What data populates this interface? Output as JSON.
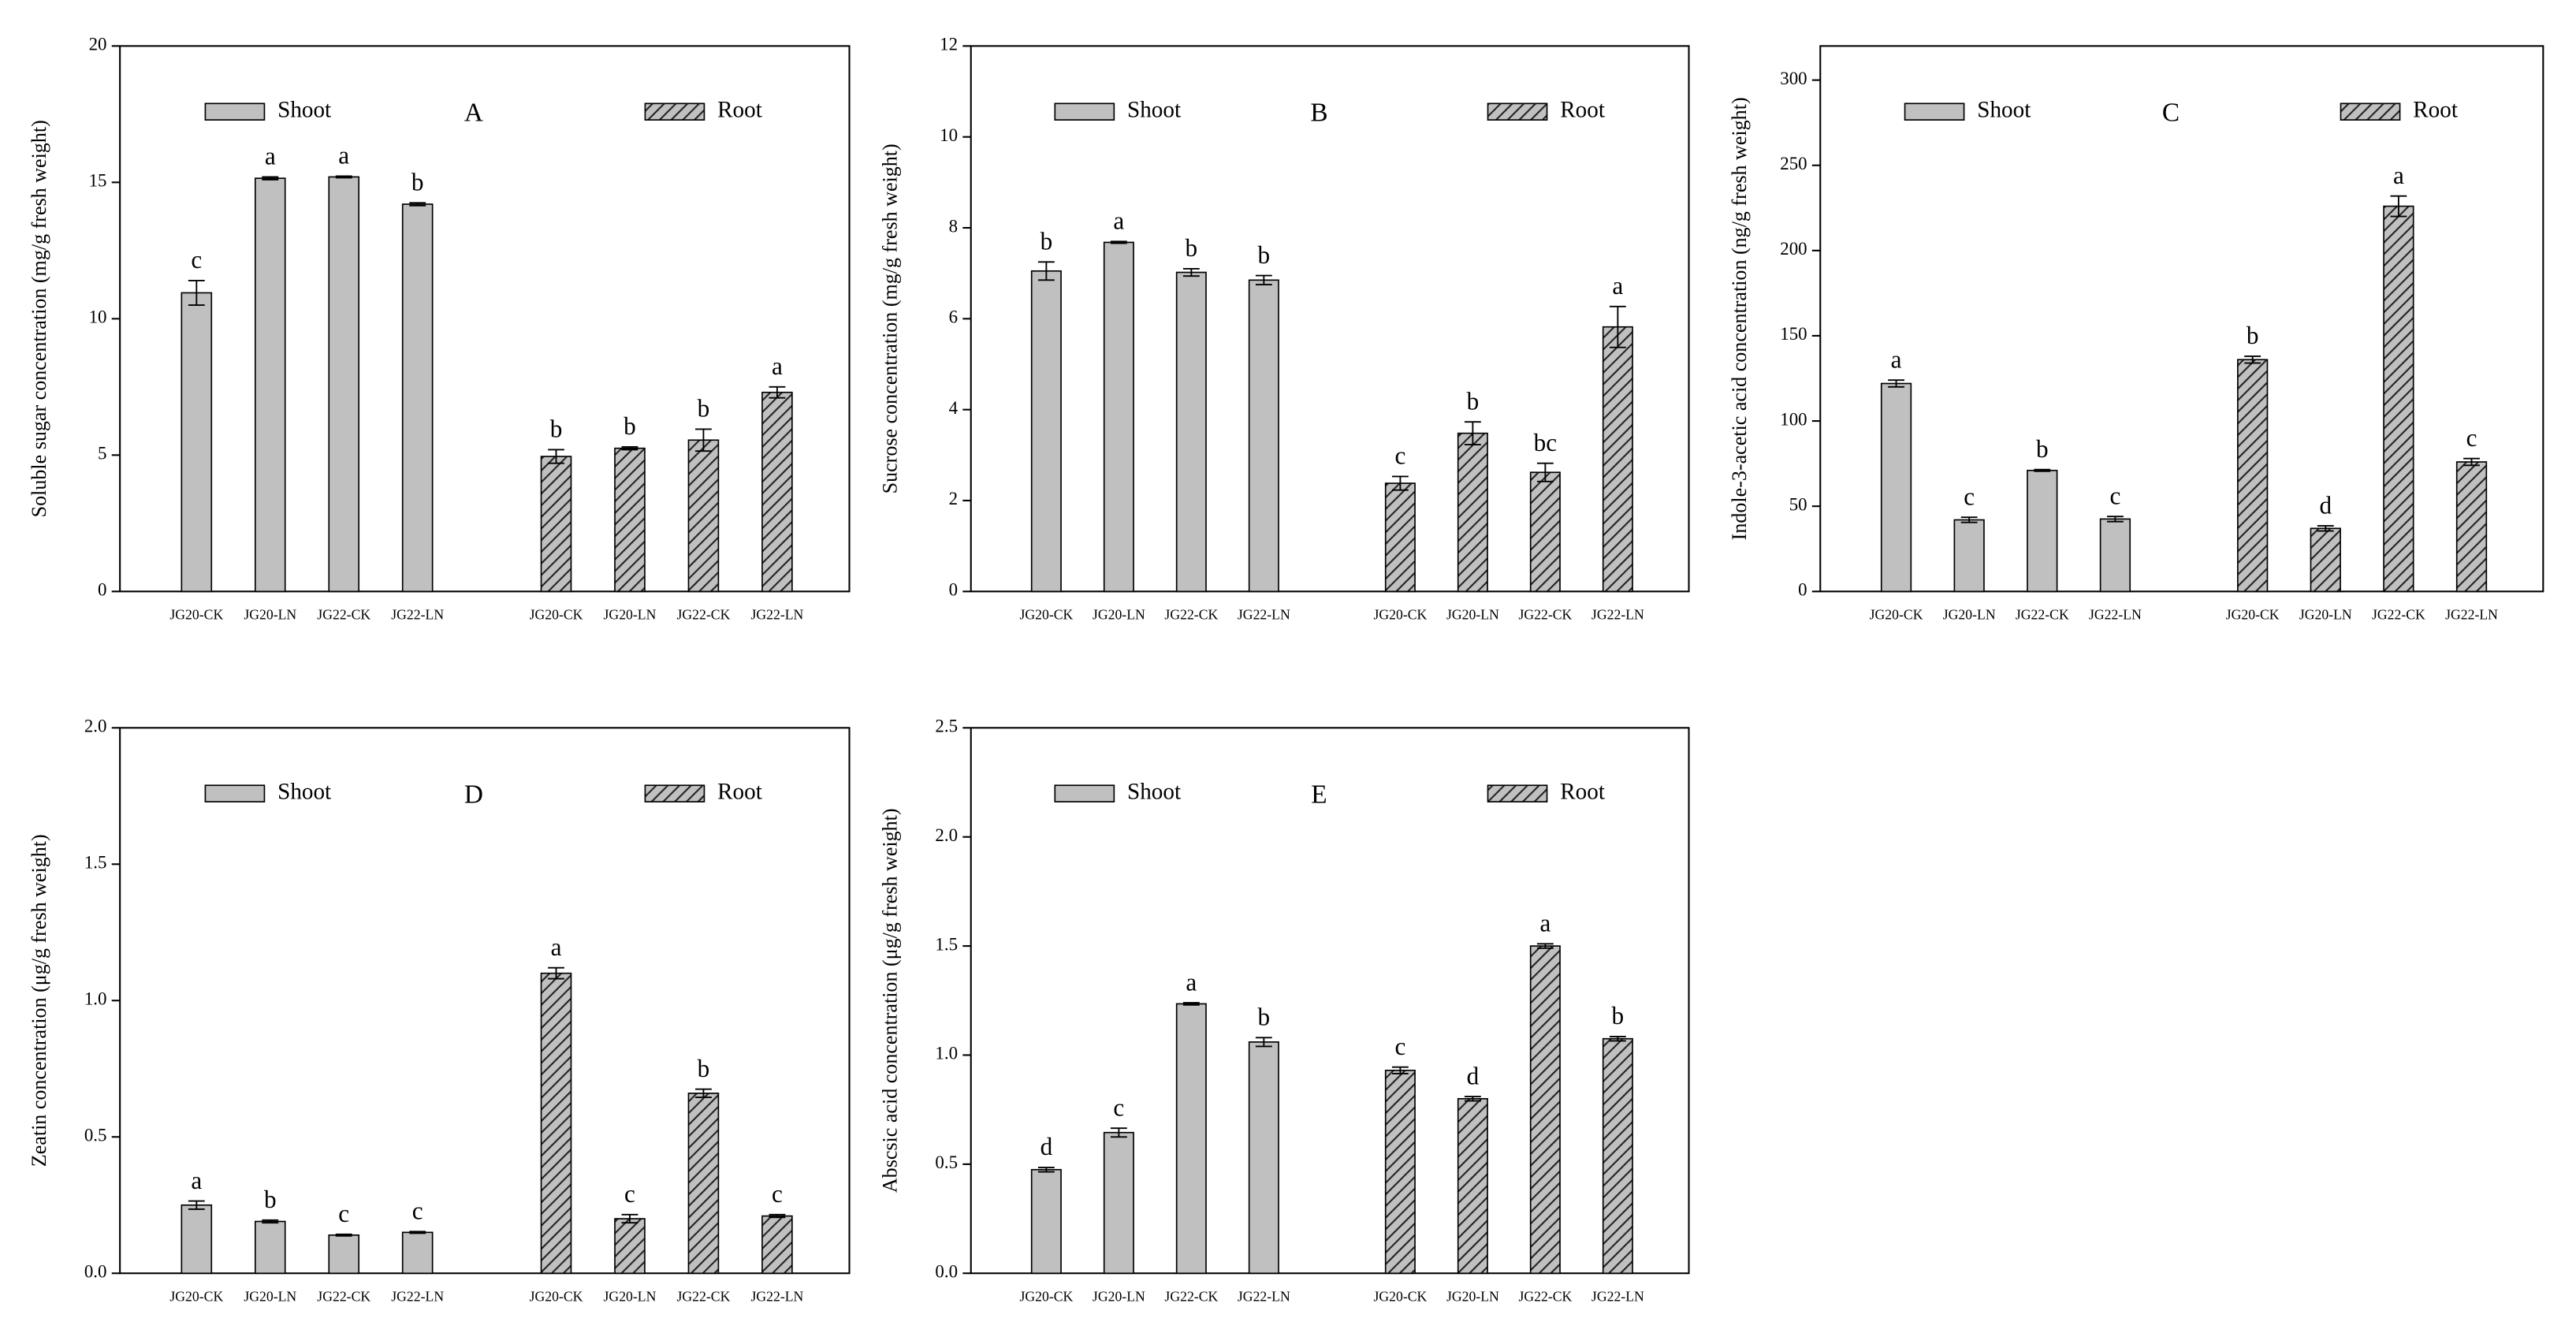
{
  "chart_data": [
    {
      "type": "bar",
      "title": "A",
      "ylabel": "Soluble sugar concentration (mg/g fresh weight)",
      "categories": [
        "JG20-CK",
        "JG20-LN",
        "JG22-CK",
        "JG22-LN",
        "JG20-CK",
        "JG20-LN",
        "JG22-CK",
        "JG22-LN"
      ],
      "series": [
        {
          "name": "Shoot",
          "color": "#c0c0c0",
          "hatch": false,
          "values": [
            10.95,
            15.15,
            15.2,
            14.2,
            null,
            null,
            null,
            null
          ],
          "errors": [
            0.45,
            0.05,
            0.03,
            0.05,
            null,
            null,
            null,
            null
          ],
          "letters": [
            "c",
            "a",
            "a",
            "b",
            null,
            null,
            null,
            null
          ]
        },
        {
          "name": "Root",
          "color": "#c0c0c0",
          "hatch": true,
          "values": [
            null,
            null,
            null,
            null,
            4.95,
            5.25,
            5.55,
            7.3
          ],
          "errors": [
            null,
            null,
            null,
            null,
            0.25,
            0.05,
            0.4,
            0.2
          ],
          "letters": [
            null,
            null,
            null,
            null,
            "b",
            "b",
            "b",
            "a"
          ]
        }
      ],
      "ylim": [
        0,
        20
      ],
      "yticks": [
        0,
        5,
        10,
        15,
        20
      ]
    },
    {
      "type": "bar",
      "title": "B",
      "ylabel": "Sucrose concentration (mg/g fresh weight)",
      "categories": [
        "JG20-CK",
        "JG20-LN",
        "JG22-CK",
        "JG22-LN",
        "JG20-CK",
        "JG20-LN",
        "JG22-CK",
        "JG22-LN"
      ],
      "series": [
        {
          "name": "Shoot",
          "color": "#c0c0c0",
          "hatch": false,
          "values": [
            7.05,
            7.68,
            7.02,
            6.85,
            null,
            null,
            null,
            null
          ],
          "errors": [
            0.2,
            0.02,
            0.08,
            0.1,
            null,
            null,
            null,
            null
          ],
          "letters": [
            "b",
            "a",
            "b",
            "b",
            null,
            null,
            null,
            null
          ]
        },
        {
          "name": "Root",
          "color": "#c0c0c0",
          "hatch": true,
          "values": [
            null,
            null,
            null,
            null,
            2.38,
            3.48,
            2.62,
            5.82
          ],
          "errors": [
            null,
            null,
            null,
            null,
            0.15,
            0.25,
            0.2,
            0.45
          ],
          "letters": [
            null,
            null,
            null,
            null,
            "c",
            "b",
            "bc",
            "a"
          ]
        }
      ],
      "ylim": [
        0,
        12
      ],
      "yticks": [
        0,
        2,
        4,
        6,
        8,
        10,
        12
      ]
    },
    {
      "type": "bar",
      "title": "C",
      "ylabel": "Indole-3-acetic acid concentration (ng/g fresh weight)",
      "categories": [
        "JG20-CK",
        "JG20-LN",
        "JG22-CK",
        "JG22-LN",
        "JG20-CK",
        "JG20-LN",
        "JG22-CK",
        "JG22-LN"
      ],
      "series": [
        {
          "name": "Shoot",
          "color": "#c0c0c0",
          "hatch": false,
          "values": [
            122,
            42,
            71,
            42.5,
            null,
            null,
            null,
            null
          ],
          "errors": [
            2,
            1.5,
            0.5,
            1.5,
            null,
            null,
            null,
            null
          ],
          "letters": [
            "a",
            "c",
            "b",
            "c",
            null,
            null,
            null,
            null
          ]
        },
        {
          "name": "Root",
          "color": "#c0c0c0",
          "hatch": true,
          "values": [
            null,
            null,
            null,
            null,
            136,
            37,
            226,
            76
          ],
          "errors": [
            null,
            null,
            null,
            null,
            2,
            1.5,
            6,
            2
          ],
          "letters": [
            null,
            null,
            null,
            null,
            "b",
            "d",
            "a",
            "c"
          ]
        }
      ],
      "ylim": [
        0,
        320
      ],
      "yticks": [
        0,
        50,
        100,
        150,
        200,
        250,
        300
      ]
    },
    {
      "type": "bar",
      "title": "D",
      "ylabel": "Zeatin concentration (μg/g fresh weight)",
      "categories": [
        "JG20-CK",
        "JG20-LN",
        "JG22-CK",
        "JG22-LN",
        "JG20-CK",
        "JG20-LN",
        "JG22-CK",
        "JG22-LN"
      ],
      "series": [
        {
          "name": "Shoot",
          "color": "#c0c0c0",
          "hatch": false,
          "values": [
            0.25,
            0.19,
            0.14,
            0.15,
            null,
            null,
            null,
            null
          ],
          "errors": [
            0.015,
            0.005,
            0.003,
            0.003,
            null,
            null,
            null,
            null
          ],
          "letters": [
            "a",
            "b",
            "c",
            "c",
            null,
            null,
            null,
            null
          ]
        },
        {
          "name": "Root",
          "color": "#c0c0c0",
          "hatch": true,
          "values": [
            null,
            null,
            null,
            null,
            1.1,
            0.2,
            0.66,
            0.21
          ],
          "errors": [
            null,
            null,
            null,
            null,
            0.02,
            0.015,
            0.015,
            0.005
          ],
          "letters": [
            null,
            null,
            null,
            null,
            "a",
            "c",
            "b",
            "c"
          ]
        }
      ],
      "ylim": [
        0,
        2
      ],
      "yticks": [
        {
          "value": 0,
          "label": "0.0"
        },
        0.5,
        {
          "value": 1,
          "label": "1.0"
        },
        1.5,
        {
          "value": 2,
          "label": "2.0"
        }
      ]
    },
    {
      "type": "bar",
      "title": "E",
      "ylabel": "Abscsic acid concentration (μg/g fresh weight)",
      "categories": [
        "JG20-CK",
        "JG20-LN",
        "JG22-CK",
        "JG22-LN",
        "JG20-CK",
        "JG20-LN",
        "JG22-CK",
        "JG22-LN"
      ],
      "series": [
        {
          "name": "Shoot",
          "color": "#c0c0c0",
          "hatch": false,
          "values": [
            0.475,
            0.645,
            1.235,
            1.06,
            null,
            null,
            null,
            null
          ],
          "errors": [
            0.01,
            0.02,
            0.005,
            0.02,
            null,
            null,
            null,
            null
          ],
          "letters": [
            "d",
            "c",
            "a",
            "b",
            null,
            null,
            null,
            null
          ]
        },
        {
          "name": "Root",
          "color": "#c0c0c0",
          "hatch": true,
          "values": [
            null,
            null,
            null,
            null,
            0.93,
            0.8,
            1.5,
            1.075
          ],
          "errors": [
            null,
            null,
            null,
            null,
            0.015,
            0.01,
            0.01,
            0.01
          ],
          "letters": [
            null,
            null,
            null,
            null,
            "c",
            "d",
            "a",
            "b"
          ]
        }
      ],
      "ylim": [
        0,
        2.5
      ],
      "yticks": [
        {
          "value": 0,
          "label": "0.0"
        },
        0.5,
        {
          "value": 1,
          "label": "1.0"
        },
        1.5,
        {
          "value": 2,
          "label": "2.0"
        },
        2.5
      ]
    }
  ]
}
